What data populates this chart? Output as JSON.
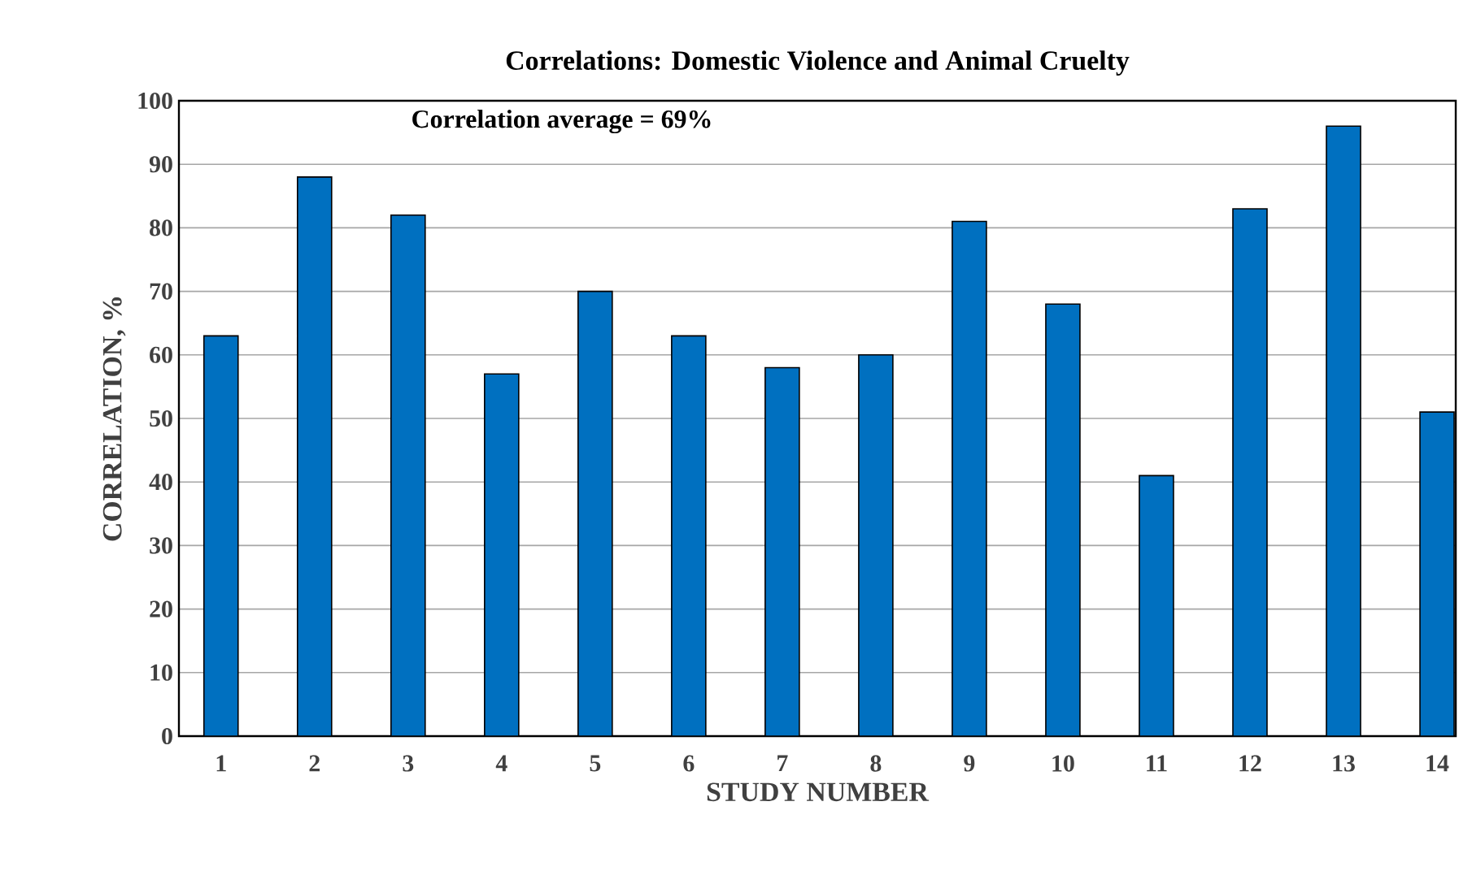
{
  "chart_data": {
    "type": "bar",
    "title": "Correlations: Domestic Violence and Animal Cruelty",
    "xlabel": "STUDY  NUMBER",
    "ylabel": "CORRELATION, %",
    "categories": [
      "1",
      "2",
      "3",
      "4",
      "5",
      "6",
      "7",
      "8",
      "9",
      "10",
      "11",
      "12",
      "13",
      "14"
    ],
    "values": [
      63,
      88,
      82,
      57,
      70,
      63,
      58,
      60,
      81,
      68,
      41,
      83,
      96,
      51
    ],
    "color": "#0070c0",
    "ylim": [
      0,
      100
    ],
    "yticks": [
      0,
      10,
      20,
      30,
      40,
      50,
      60,
      70,
      80,
      90,
      100
    ],
    "grid": "y",
    "annotations": [
      "Correlation average = 69%"
    ]
  }
}
